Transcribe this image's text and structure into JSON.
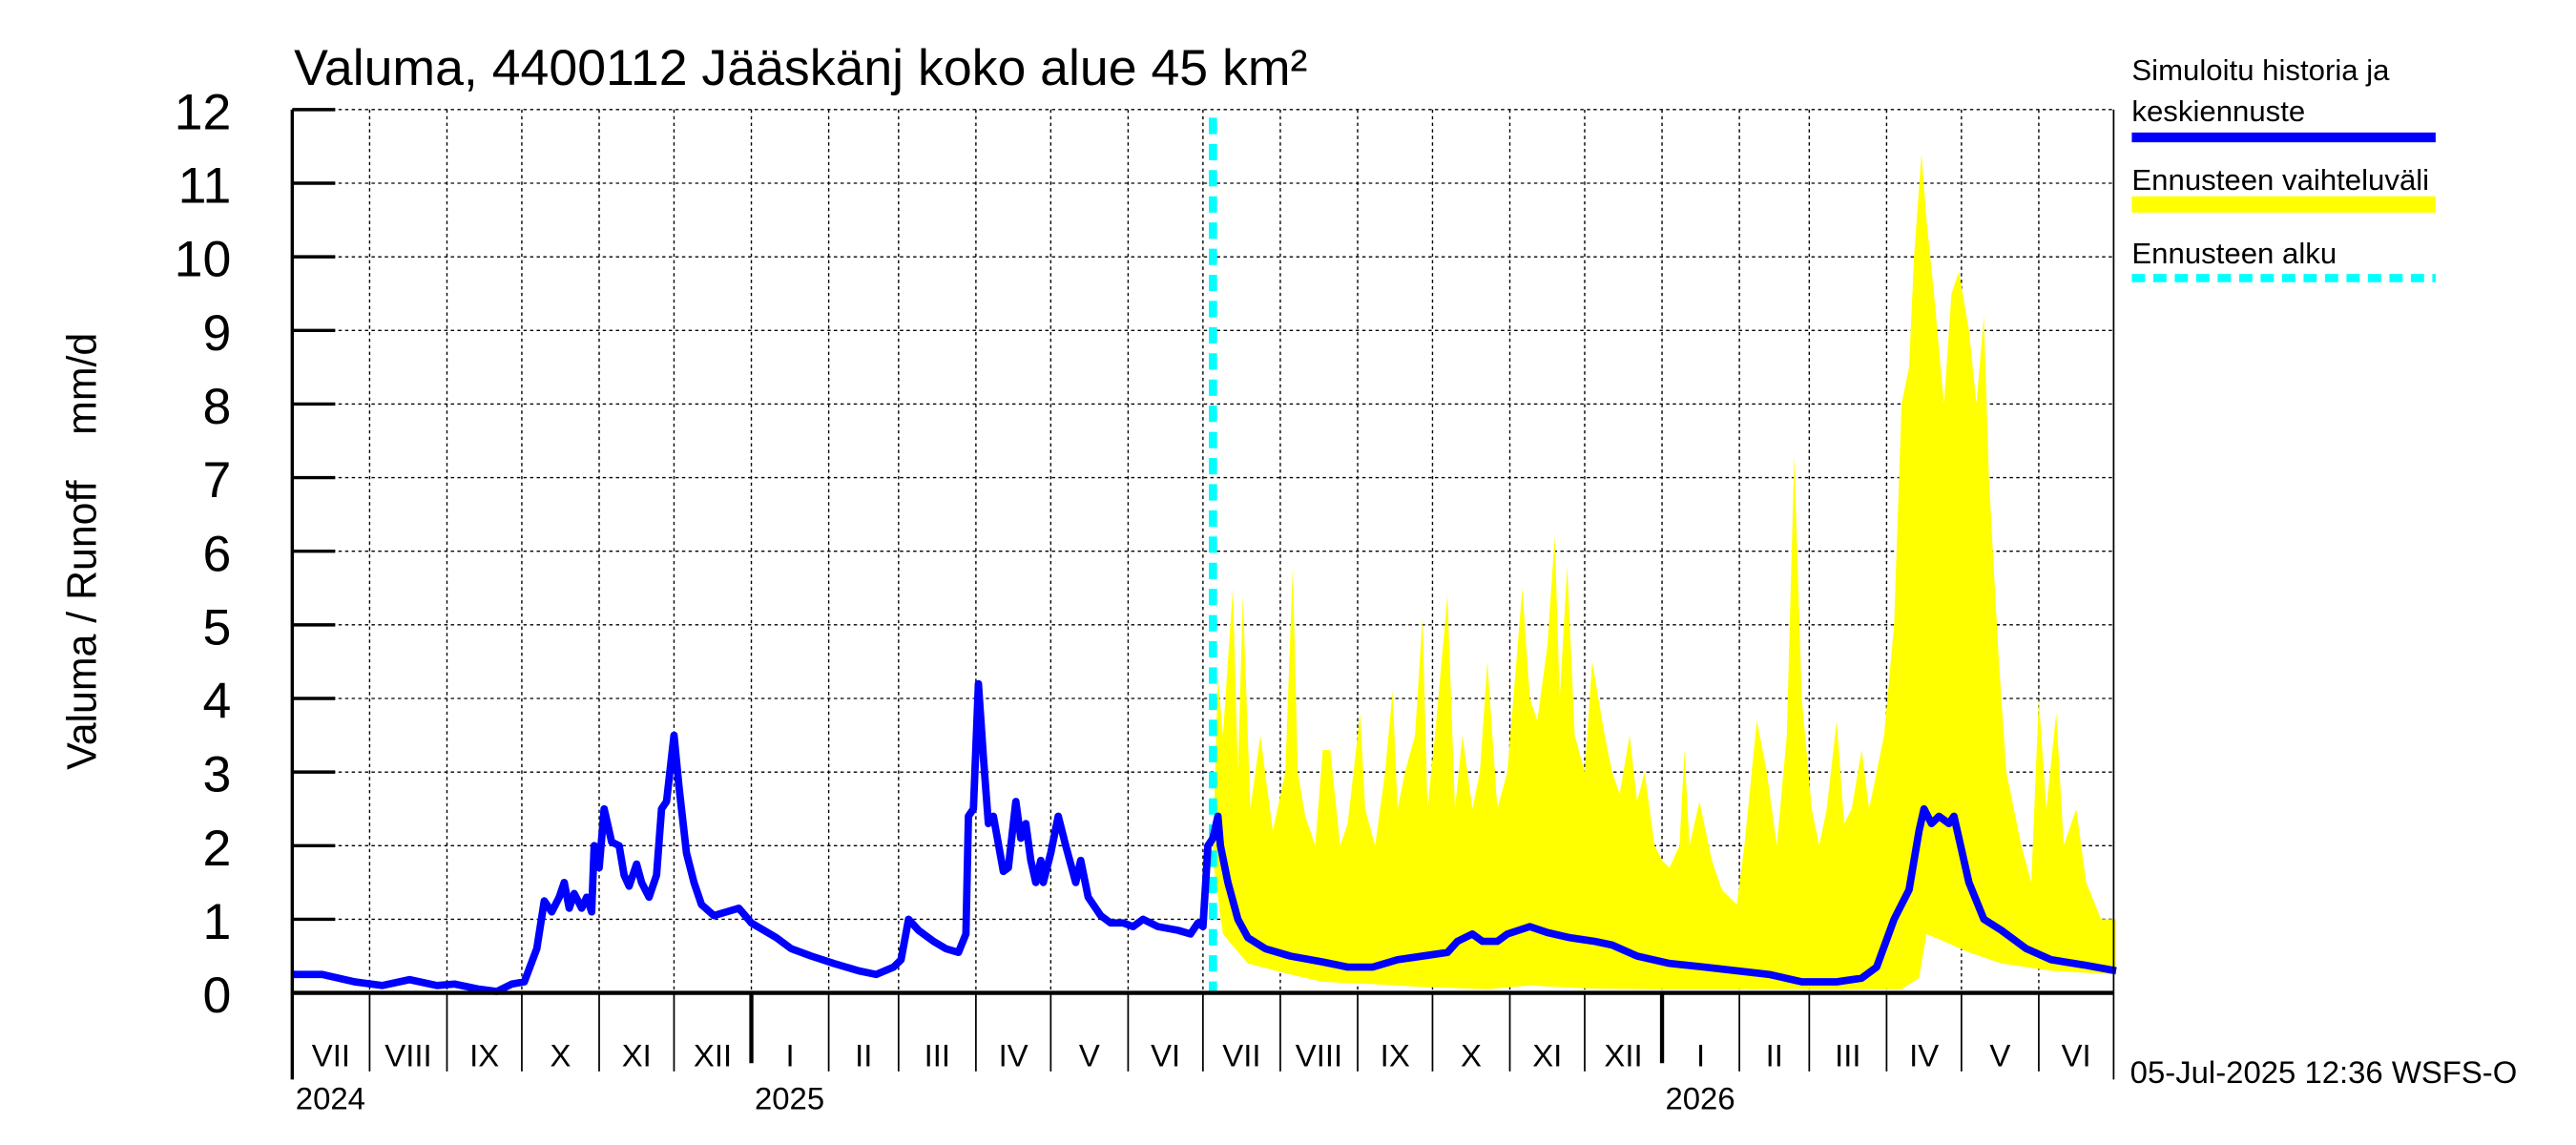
{
  "chart_data": {
    "type": "line",
    "title": "Valuma, 4400112 Jääskänj koko alue 45 km²",
    "ylabel": "Valuma / Runoff    mm/d",
    "xlabel": "",
    "ylim": [
      0,
      12
    ],
    "yticks": [
      "0",
      "1",
      "2",
      "3",
      "4",
      "5",
      "6",
      "7",
      "8",
      "9",
      "10",
      "11",
      "12"
    ],
    "x_units": "days since 2024-07-01",
    "xlim": [
      0,
      730
    ],
    "grid": true,
    "month_labels": [
      "VII",
      "VIII",
      "IX",
      "X",
      "XI",
      "XII",
      "I",
      "II",
      "III",
      "IV",
      "V",
      "VI",
      "VII",
      "VIII",
      "IX",
      "X",
      "XI",
      "XII",
      "I",
      "II",
      "III",
      "IV",
      "V",
      "VI"
    ],
    "month_lengths": [
      31,
      31,
      30,
      31,
      30,
      31,
      31,
      28,
      31,
      30,
      31,
      30,
      31,
      31,
      30,
      31,
      30,
      31,
      31,
      28,
      31,
      30,
      31,
      30
    ],
    "year_labels": [
      {
        "label": "2024",
        "day": 0
      },
      {
        "label": "2025",
        "day": 184
      },
      {
        "label": "2026",
        "day": 549
      }
    ],
    "forecast_start_day": 369,
    "legend": {
      "placement": "right",
      "entries": [
        {
          "label_lines": [
            "Simuloitu historia ja",
            "keskiennuste"
          ],
          "color": "#0000ff",
          "style": "solid"
        },
        {
          "label_lines": [
            "Ennusteen vaihteluväli"
          ],
          "color": "#ffff00",
          "style": "band"
        },
        {
          "label_lines": [
            "Ennusteen alku"
          ],
          "color": "#00ffff",
          "style": "dashed"
        }
      ]
    },
    "footer": "05-Jul-2025 12:36 WSFS-O",
    "series": [
      {
        "name": "Simuloitu historia ja keskiennuste",
        "color": "#0000ff",
        "points": [
          [
            0,
            0.25
          ],
          [
            12,
            0.25
          ],
          [
            25,
            0.15
          ],
          [
            36,
            0.1
          ],
          [
            47,
            0.18
          ],
          [
            58,
            0.1
          ],
          [
            65,
            0.12
          ],
          [
            75,
            0.05
          ],
          [
            82,
            0.02
          ],
          [
            88,
            0.12
          ],
          [
            93,
            0.15
          ],
          [
            98,
            0.6
          ],
          [
            101,
            1.25
          ],
          [
            104,
            1.1
          ],
          [
            107,
            1.3
          ],
          [
            109,
            1.5
          ],
          [
            111,
            1.15
          ],
          [
            113,
            1.35
          ],
          [
            116,
            1.15
          ],
          [
            118,
            1.3
          ],
          [
            120,
            1.1
          ],
          [
            121,
            2.0
          ],
          [
            123,
            1.7
          ],
          [
            125,
            2.5
          ],
          [
            128,
            2.05
          ],
          [
            131,
            2.0
          ],
          [
            133,
            1.6
          ],
          [
            135,
            1.45
          ],
          [
            138,
            1.75
          ],
          [
            140,
            1.5
          ],
          [
            143,
            1.3
          ],
          [
            146,
            1.6
          ],
          [
            148,
            2.5
          ],
          [
            150,
            2.6
          ],
          [
            153,
            3.5
          ],
          [
            155,
            2.8
          ],
          [
            158,
            1.9
          ],
          [
            161,
            1.5
          ],
          [
            164,
            1.2
          ],
          [
            169,
            1.05
          ],
          [
            174,
            1.1
          ],
          [
            179,
            1.15
          ],
          [
            184,
            0.95
          ],
          [
            194,
            0.75
          ],
          [
            200,
            0.6
          ],
          [
            208,
            0.5
          ],
          [
            217,
            0.4
          ],
          [
            227,
            0.3
          ],
          [
            234,
            0.25
          ],
          [
            241,
            0.35
          ],
          [
            244,
            0.45
          ],
          [
            247,
            1.0
          ],
          [
            251,
            0.85
          ],
          [
            257,
            0.7
          ],
          [
            262,
            0.6
          ],
          [
            267,
            0.55
          ],
          [
            270,
            0.8
          ],
          [
            271,
            2.4
          ],
          [
            273,
            2.5
          ],
          [
            275,
            4.2
          ],
          [
            277,
            3.2
          ],
          [
            279,
            2.3
          ],
          [
            281,
            2.4
          ],
          [
            285,
            1.65
          ],
          [
            287,
            1.7
          ],
          [
            290,
            2.6
          ],
          [
            292,
            2.1
          ],
          [
            294,
            2.3
          ],
          [
            296,
            1.8
          ],
          [
            298,
            1.5
          ],
          [
            300,
            1.8
          ],
          [
            301,
            1.5
          ],
          [
            304,
            1.9
          ],
          [
            307,
            2.4
          ],
          [
            310,
            2.0
          ],
          [
            314,
            1.5
          ],
          [
            316,
            1.8
          ],
          [
            319,
            1.3
          ],
          [
            324,
            1.05
          ],
          [
            328,
            0.95
          ],
          [
            333,
            0.95
          ],
          [
            337,
            0.9
          ],
          [
            341,
            1.0
          ],
          [
            347,
            0.9
          ],
          [
            355,
            0.85
          ],
          [
            360,
            0.8
          ],
          [
            363,
            0.95
          ],
          [
            365,
            0.9
          ],
          [
            367,
            2.0
          ],
          [
            369,
            2.1
          ],
          [
            371,
            2.4
          ],
          [
            372,
            2.0
          ],
          [
            375,
            1.5
          ],
          [
            379,
            1.0
          ],
          [
            383,
            0.75
          ],
          [
            390,
            0.6
          ],
          [
            400,
            0.5
          ],
          [
            413,
            0.42
          ],
          [
            423,
            0.35
          ],
          [
            433,
            0.35
          ],
          [
            443,
            0.45
          ],
          [
            453,
            0.5
          ],
          [
            463,
            0.55
          ],
          [
            467,
            0.7
          ],
          [
            473,
            0.8
          ],
          [
            477,
            0.7
          ],
          [
            483,
            0.7
          ],
          [
            487,
            0.8
          ],
          [
            496,
            0.9
          ],
          [
            503,
            0.82
          ],
          [
            512,
            0.75
          ],
          [
            522,
            0.7
          ],
          [
            529,
            0.65
          ],
          [
            539,
            0.5
          ],
          [
            552,
            0.4
          ],
          [
            566,
            0.35
          ],
          [
            579,
            0.3
          ],
          [
            592,
            0.25
          ],
          [
            605,
            0.15
          ],
          [
            619,
            0.15
          ],
          [
            629,
            0.2
          ],
          [
            635,
            0.35
          ],
          [
            642,
            1.0
          ],
          [
            648,
            1.4
          ],
          [
            652,
            2.2
          ],
          [
            654,
            2.5
          ],
          [
            657,
            2.3
          ],
          [
            660,
            2.4
          ],
          [
            664,
            2.3
          ],
          [
            666,
            2.4
          ],
          [
            672,
            1.5
          ],
          [
            678,
            1.0
          ],
          [
            685,
            0.85
          ],
          [
            695,
            0.6
          ],
          [
            705,
            0.45
          ],
          [
            718,
            0.38
          ],
          [
            731,
            0.3
          ]
        ]
      },
      {
        "name": "Ennusteen vaihteluväli (yläraja)",
        "color": "#ffff00",
        "points": [
          [
            369,
            2.0
          ],
          [
            371,
            4.3
          ],
          [
            373,
            3.5
          ],
          [
            377,
            5.5
          ],
          [
            379,
            3.0
          ],
          [
            381,
            5.4
          ],
          [
            384,
            2.5
          ],
          [
            388,
            3.5
          ],
          [
            393,
            2.2
          ],
          [
            398,
            3.0
          ],
          [
            401,
            5.8
          ],
          [
            403,
            3.0
          ],
          [
            406,
            2.4
          ],
          [
            410,
            2.0
          ],
          [
            413,
            3.3
          ],
          [
            416,
            3.3
          ],
          [
            420,
            2.0
          ],
          [
            423,
            2.3
          ],
          [
            428,
            3.8
          ],
          [
            430,
            2.5
          ],
          [
            434,
            2.0
          ],
          [
            438,
            3.0
          ],
          [
            441,
            4.1
          ],
          [
            443,
            2.5
          ],
          [
            446,
            3.0
          ],
          [
            450,
            3.5
          ],
          [
            453,
            5.1
          ],
          [
            455,
            2.5
          ],
          [
            458,
            3.5
          ],
          [
            463,
            5.4
          ],
          [
            466,
            2.5
          ],
          [
            469,
            3.5
          ],
          [
            473,
            2.5
          ],
          [
            476,
            3.0
          ],
          [
            479,
            4.5
          ],
          [
            483,
            2.5
          ],
          [
            487,
            3.0
          ],
          [
            493,
            5.5
          ],
          [
            496,
            4.0
          ],
          [
            499,
            3.7
          ],
          [
            503,
            4.7
          ],
          [
            506,
            6.2
          ],
          [
            508,
            4.0
          ],
          [
            511,
            5.8
          ],
          [
            514,
            3.5
          ],
          [
            518,
            3.0
          ],
          [
            521,
            4.5
          ],
          [
            526,
            3.5
          ],
          [
            529,
            3.0
          ],
          [
            532,
            2.7
          ],
          [
            536,
            3.5
          ],
          [
            539,
            2.6
          ],
          [
            542,
            3.0
          ],
          [
            546,
            2.0
          ],
          [
            549,
            1.8
          ],
          [
            552,
            1.7
          ],
          [
            556,
            2.0
          ],
          [
            558,
            3.3
          ],
          [
            560,
            2.0
          ],
          [
            564,
            2.6
          ],
          [
            569,
            1.8
          ],
          [
            573,
            1.4
          ],
          [
            579,
            1.2
          ],
          [
            582,
            2.0
          ],
          [
            587,
            3.7
          ],
          [
            591,
            3.0
          ],
          [
            595,
            2.0
          ],
          [
            599,
            3.5
          ],
          [
            602,
            7.3
          ],
          [
            605,
            4.0
          ],
          [
            609,
            2.5
          ],
          [
            612,
            2.0
          ],
          [
            615,
            2.5
          ],
          [
            619,
            3.7
          ],
          [
            622,
            2.3
          ],
          [
            625,
            2.5
          ],
          [
            629,
            3.3
          ],
          [
            632,
            2.5
          ],
          [
            635,
            3.0
          ],
          [
            638,
            3.5
          ],
          [
            642,
            5.0
          ],
          [
            645,
            8.0
          ],
          [
            648,
            8.5
          ],
          [
            650,
            10.0
          ],
          [
            653,
            11.4
          ],
          [
            655,
            10.5
          ],
          [
            658,
            9.5
          ],
          [
            662,
            8.0
          ],
          [
            665,
            9.5
          ],
          [
            668,
            9.8
          ],
          [
            672,
            9.0
          ],
          [
            675,
            8.0
          ],
          [
            678,
            9.2
          ],
          [
            680,
            7.0
          ],
          [
            684,
            4.5
          ],
          [
            687,
            3.0
          ],
          [
            690,
            2.5
          ],
          [
            693,
            2.0
          ],
          [
            697,
            1.5
          ],
          [
            700,
            4.0
          ],
          [
            703,
            2.5
          ],
          [
            707,
            3.8
          ],
          [
            710,
            2.0
          ],
          [
            715,
            2.5
          ],
          [
            719,
            1.5
          ],
          [
            725,
            1.0
          ],
          [
            731,
            1.0
          ]
        ]
      },
      {
        "name": "Ennusteen vaihteluväli (alaraja)",
        "color": "#ffff00",
        "points": [
          [
            369,
            1.8
          ],
          [
            373,
            0.8
          ],
          [
            383,
            0.4
          ],
          [
            400,
            0.25
          ],
          [
            413,
            0.15
          ],
          [
            433,
            0.12
          ],
          [
            453,
            0.08
          ],
          [
            479,
            0.05
          ],
          [
            496,
            0.1
          ],
          [
            519,
            0.06
          ],
          [
            546,
            0.05
          ],
          [
            612,
            0.05
          ],
          [
            645,
            0.05
          ],
          [
            652,
            0.2
          ],
          [
            655,
            0.8
          ],
          [
            662,
            0.7
          ],
          [
            672,
            0.55
          ],
          [
            685,
            0.4
          ],
          [
            705,
            0.3
          ],
          [
            731,
            0.25
          ]
        ]
      }
    ]
  }
}
